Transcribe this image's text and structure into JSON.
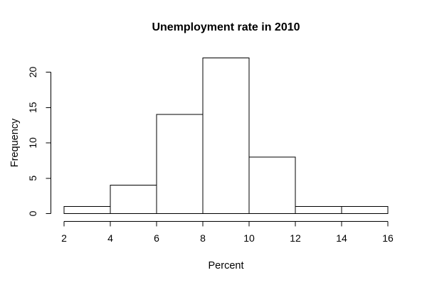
{
  "chart_data": {
    "type": "bar",
    "subtype": "histogram",
    "title": "Unemployment rate in 2010",
    "xlabel": "Percent",
    "ylabel": "Frequency",
    "bin_edges": [
      2,
      4,
      6,
      8,
      10,
      12,
      14,
      16
    ],
    "counts": [
      1,
      4,
      14,
      22,
      8,
      1,
      1
    ],
    "x_ticks": [
      2,
      4,
      6,
      8,
      10,
      12,
      14,
      16
    ],
    "y_ticks": [
      0,
      5,
      10,
      15,
      20
    ],
    "xlim": [
      2,
      16
    ],
    "ylim": [
      0,
      22
    ],
    "grid": false,
    "legend_position": "none",
    "colors": {
      "background": "#ffffff",
      "bar_fill": "#ffffff",
      "bar_border": "#000000",
      "axis": "#000000",
      "text": "#000000"
    }
  }
}
